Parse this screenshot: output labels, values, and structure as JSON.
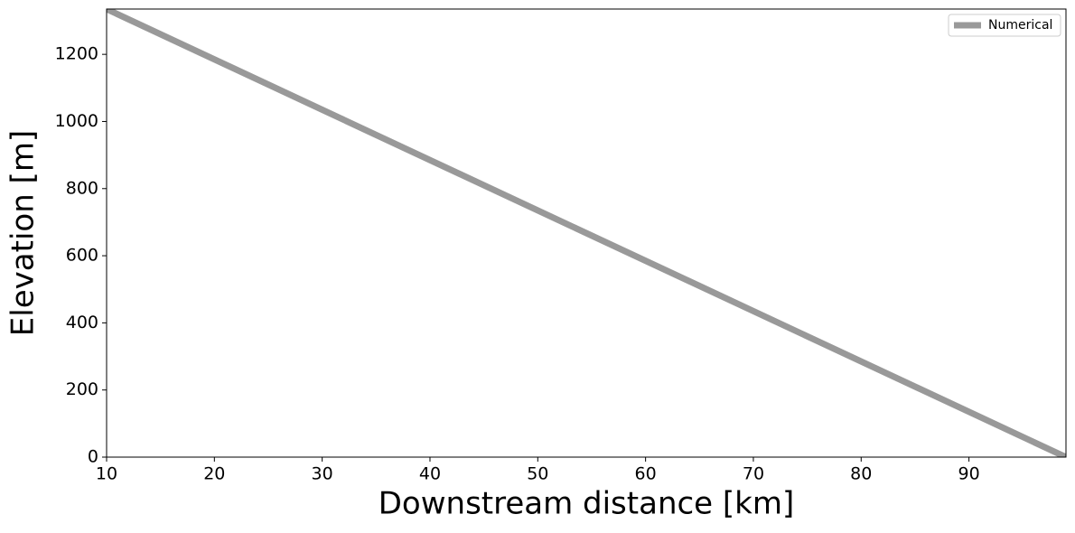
{
  "chart_data": {
    "type": "line",
    "x_label": "Downstream distance [km]",
    "y_label": "Elevation [m]",
    "x": [
      10,
      99
    ],
    "series": [
      {
        "name": "Numerical",
        "color": "#999999",
        "values": [
          1335,
          0
        ]
      }
    ],
    "xlim": [
      10,
      99
    ],
    "xticks": [
      10,
      20,
      30,
      40,
      50,
      60,
      70,
      80,
      90
    ],
    "ylim": [
      0,
      1335
    ],
    "yticks": [
      0,
      200,
      400,
      600,
      800,
      1000,
      1200
    ],
    "grid": false,
    "legend": "upper right"
  }
}
